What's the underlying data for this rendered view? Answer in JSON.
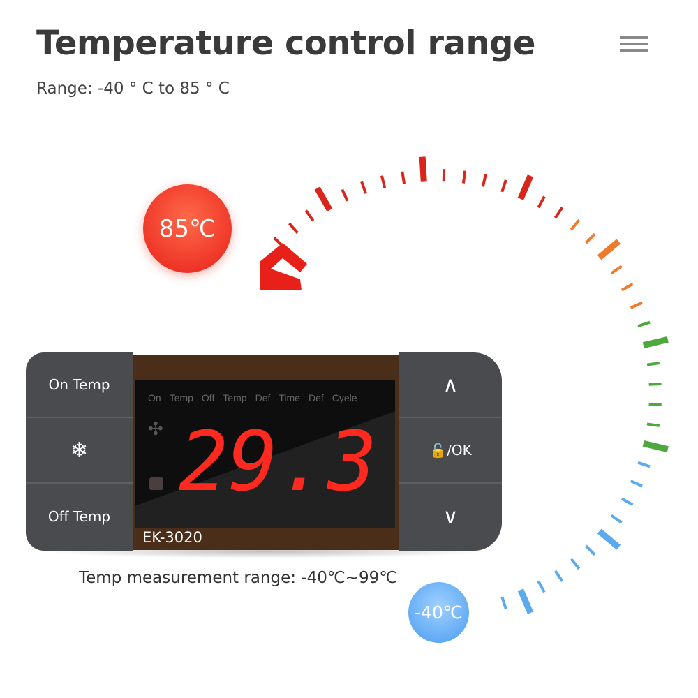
{
  "header": {
    "title": "Temperature control range",
    "subtitle": "Range: -40 ° C to 85 ° C"
  },
  "dial": {
    "max_label": "85℃",
    "min_label": "-40℃",
    "colors": [
      "#d8261c",
      "#f07a2c",
      "#4ea83c",
      "#5aaaf0"
    ]
  },
  "device": {
    "left_buttons": [
      "On Temp",
      "❄",
      "Off Temp"
    ],
    "right_buttons": [
      "∧",
      "🔓/OK",
      "∨"
    ],
    "indicator_labels": [
      "On",
      "Temp",
      "Off",
      "Temp",
      "Def",
      "Time",
      "Def",
      "Cyele"
    ],
    "reading": "29.3",
    "model": "EK-3020"
  },
  "footer": {
    "measurement_range": "Temp measurement range: -40℃~99℃"
  }
}
